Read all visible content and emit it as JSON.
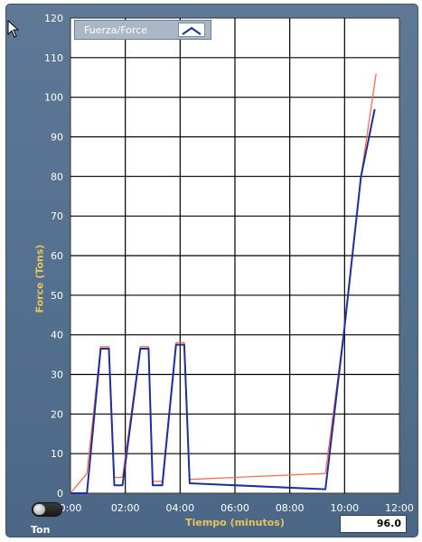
{
  "legend": {
    "label": "Fuerza/Force",
    "swatch_icon": "line-swatch-icon"
  },
  "chart_data": {
    "type": "line",
    "title": "",
    "xlabel": "Tiempo (minutos)",
    "ylabel": "Force (Tons)",
    "xlim": [
      0,
      12
    ],
    "ylim": [
      0,
      120
    ],
    "x_ticks": [
      "0:00",
      "02:00",
      "04:00",
      "06:00",
      "08:00",
      "10:00",
      "12:00"
    ],
    "y_ticks": [
      "0",
      "10",
      "20",
      "30",
      "40",
      "50",
      "60",
      "70",
      "80",
      "90",
      "100",
      "110",
      "120"
    ],
    "grid": true,
    "legend_position": "top-left",
    "series": [
      {
        "name": "Fuerza/Force",
        "color": "#1c2f9e",
        "points": [
          [
            0,
            0
          ],
          [
            0.6,
            0
          ],
          [
            1.1,
            36.5
          ],
          [
            1.4,
            36.5
          ],
          [
            1.6,
            2
          ],
          [
            1.9,
            2
          ],
          [
            2.55,
            36.5
          ],
          [
            2.85,
            36.5
          ],
          [
            3.0,
            2
          ],
          [
            3.35,
            2
          ],
          [
            3.85,
            37.5
          ],
          [
            4.15,
            37.5
          ],
          [
            4.35,
            2.5
          ],
          [
            9.3,
            1
          ],
          [
            10.0,
            42
          ],
          [
            10.6,
            80
          ],
          [
            11.1,
            97
          ]
        ]
      },
      {
        "name": "",
        "color": "#ff6a4a",
        "points": [
          [
            0,
            0
          ],
          [
            0.6,
            5
          ],
          [
            1.1,
            37
          ],
          [
            1.4,
            37
          ],
          [
            1.6,
            4
          ],
          [
            1.9,
            4
          ],
          [
            2.55,
            37
          ],
          [
            2.85,
            37
          ],
          [
            3.0,
            3
          ],
          [
            3.35,
            3
          ],
          [
            3.85,
            38
          ],
          [
            4.15,
            38
          ],
          [
            4.35,
            3.5
          ],
          [
            9.3,
            5
          ],
          [
            10.0,
            42
          ],
          [
            10.6,
            80
          ],
          [
            11.15,
            106
          ]
        ]
      }
    ]
  },
  "controls": {
    "toggle_label": "Ton",
    "readout_value": "96.0"
  },
  "colors": {
    "panel": "#56718f",
    "plot_bg": "#ffffff",
    "grid": "#000000",
    "axis_label": "#e8c45a"
  },
  "icons": {
    "cursor": "mouse-pointer-icon"
  }
}
